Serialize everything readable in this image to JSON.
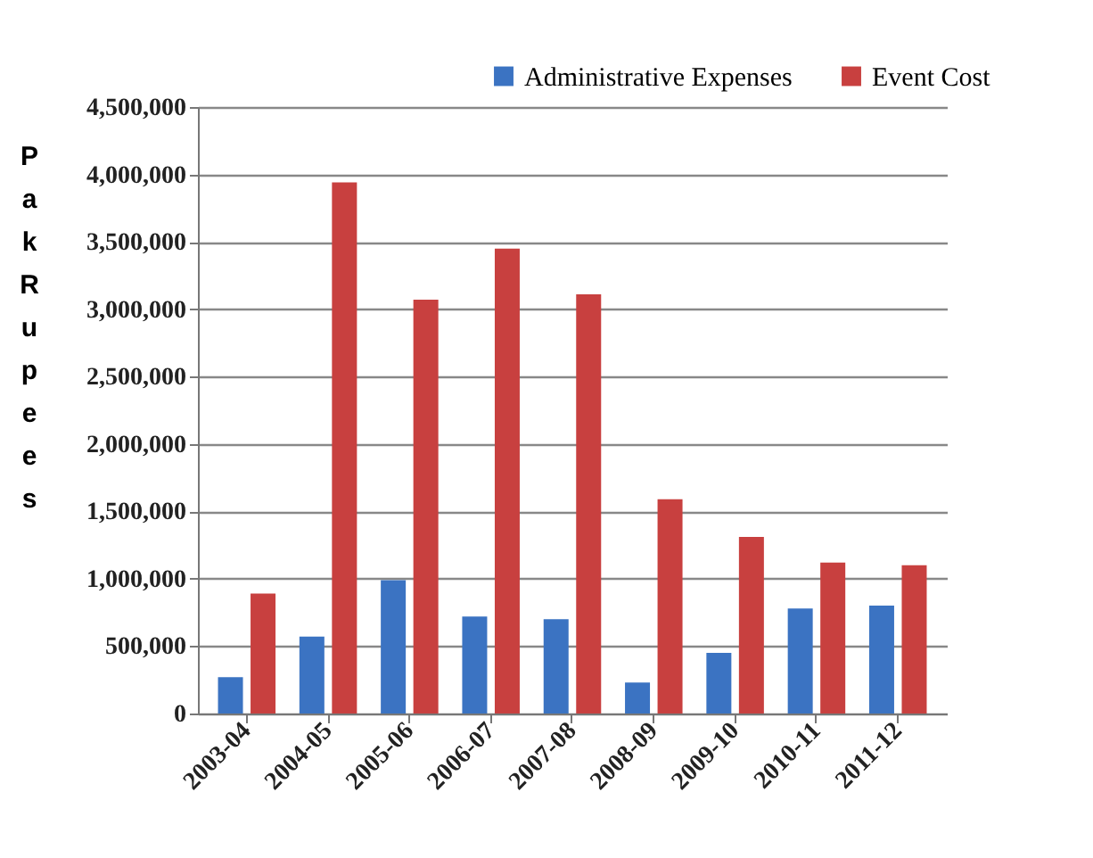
{
  "chart_data": {
    "type": "bar",
    "ylabel": "Pak Rupees",
    "categories": [
      "2003-04",
      "2004-05",
      "2005-06",
      "2006-07",
      "2007-08",
      "2008-09",
      "2009-10",
      "2010-11",
      "2011-12"
    ],
    "series": [
      {
        "name": "Administrative Expenses",
        "color": "#3b73c2",
        "values": [
          270000,
          570000,
          990000,
          720000,
          700000,
          230000,
          450000,
          780000,
          800000
        ]
      },
      {
        "name": "Event Cost",
        "color": "#c8403f",
        "values": [
          890000,
          3940000,
          3070000,
          3450000,
          3110000,
          1590000,
          1310000,
          1120000,
          1100000
        ]
      }
    ],
    "ylim": [
      0,
      4500000
    ],
    "yticks": [
      {
        "value": 0,
        "label": "0"
      },
      {
        "value": 500000,
        "label": "500,000"
      },
      {
        "value": 1000000,
        "label": "1,000,000"
      },
      {
        "value": 1500000,
        "label": "1,500,000"
      },
      {
        "value": 2000000,
        "label": "2,000,000"
      },
      {
        "value": 2500000,
        "label": "2,500,000"
      },
      {
        "value": 3000000,
        "label": "3,000,000"
      },
      {
        "value": 3500000,
        "label": "3,500,000"
      },
      {
        "value": 4000000,
        "label": "4,000,000"
      },
      {
        "value": 4500000,
        "label": "4,500,000"
      }
    ],
    "grid": "y",
    "legend": "top right"
  }
}
